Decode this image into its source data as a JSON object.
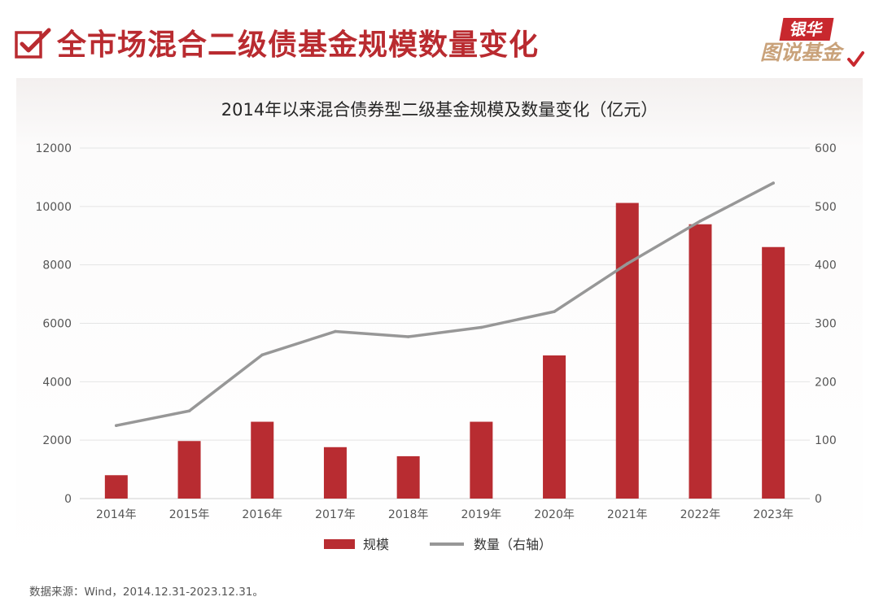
{
  "page_title": "全市场混合二级债基金规模数量变化",
  "logo": {
    "top": "银华",
    "bottom": "图说基金"
  },
  "source_note": "数据来源：Wind，2014.12.31-2023.12.31。",
  "colors": {
    "bar": "#b82c31",
    "line": "#979797",
    "title": "#b92b30",
    "grid": "#e4e4e4"
  },
  "chart_data": {
    "type": "bar",
    "title": "2014年以来混合债券型二级基金规模及数量变化（亿元）",
    "categories": [
      "2014年",
      "2015年",
      "2016年",
      "2017年",
      "2018年",
      "2019年",
      "2020年",
      "2021年",
      "2022年",
      "2023年"
    ],
    "series": [
      {
        "name": "规模",
        "type": "bar",
        "axis": "left",
        "values": [
          800,
          1970,
          2630,
          1760,
          1450,
          2630,
          4900,
          10120,
          9390,
          8610
        ]
      },
      {
        "name": "数量（右轴）",
        "type": "line",
        "axis": "right",
        "values": [
          125,
          150,
          246,
          286,
          277,
          293,
          320,
          402,
          475,
          540
        ]
      }
    ],
    "left_axis": {
      "ylim": [
        0,
        12000
      ],
      "ticks": [
        "0",
        "2000",
        "4000",
        "6000",
        "8000",
        "10000",
        "12000"
      ]
    },
    "right_axis": {
      "ylim": [
        0,
        600
      ],
      "ticks": [
        "0",
        "100",
        "200",
        "300",
        "400",
        "500",
        "600"
      ]
    },
    "grid": true,
    "legend_position": "bottom"
  }
}
